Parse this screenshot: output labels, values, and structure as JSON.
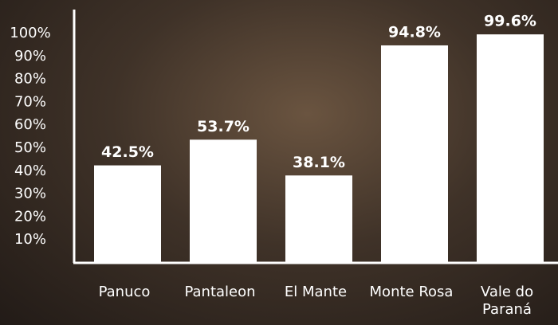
{
  "chart_data": {
    "type": "bar",
    "categories": [
      "Panuco",
      "Pantaleon",
      "El Mante",
      "Monte Rosa",
      "Vale do Paraná"
    ],
    "values": [
      42.5,
      53.7,
      38.1,
      94.8,
      99.6
    ],
    "value_labels": [
      "42.5%",
      "53.7%",
      "38.1%",
      "94.8%",
      "99.6%"
    ],
    "color": "#ffffff",
    "ylim": [
      0,
      100
    ],
    "yticks": [
      {
        "value": 10,
        "label": "10%"
      },
      {
        "value": 20,
        "label": "20%"
      },
      {
        "value": 30,
        "label": "30%"
      },
      {
        "value": 40,
        "label": "40%"
      },
      {
        "value": 50,
        "label": "50%"
      },
      {
        "value": 60,
        "label": "60%"
      },
      {
        "value": 70,
        "label": "70%"
      },
      {
        "value": 80,
        "label": "80%"
      },
      {
        "value": 90,
        "label": "90%"
      },
      {
        "value": 100,
        "label": "100%"
      }
    ]
  }
}
